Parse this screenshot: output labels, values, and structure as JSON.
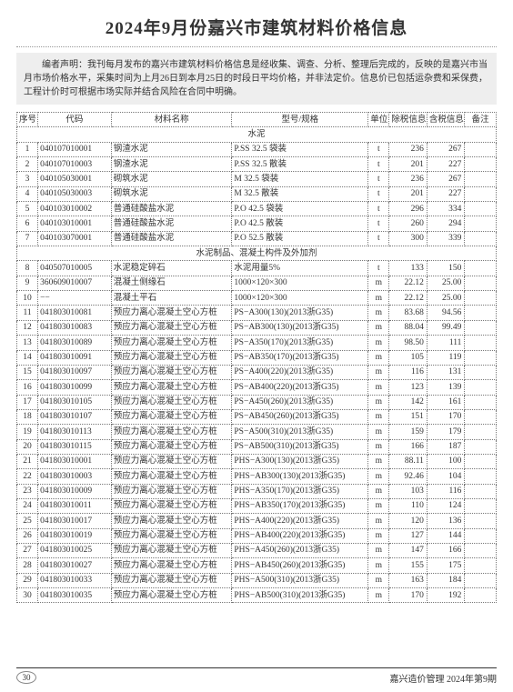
{
  "title": "2024年9月份嘉兴市建筑材料价格信息",
  "disclaimer": "编者声明：我刊每月发布的嘉兴市建筑材料价格信息是经收集、调查、分析、整理后完成的，反映的是嘉兴市当月市场价格水平，采集时间为上月26日到本月25日的时段日平均价格，并非法定价。信息价已包括运杂费和采保费，工程计价时可根据市场实际并结合风险在合同中明确。",
  "columns": [
    "序号",
    "代码",
    "材料名称",
    "型号/规格",
    "单位",
    "除税信息价",
    "含税信息价",
    "备注"
  ],
  "sections": [
    {
      "name": "水泥",
      "rows": [
        [
          "1",
          "040107010001",
          "钢渣水泥",
          "P.SS 32.5 袋装",
          "t",
          "236",
          "267",
          ""
        ],
        [
          "2",
          "040107010003",
          "钢渣水泥",
          "P.SS 32.5 散装",
          "t",
          "201",
          "227",
          ""
        ],
        [
          "3",
          "040105030001",
          "砌筑水泥",
          "M 32.5 袋装",
          "t",
          "236",
          "267",
          ""
        ],
        [
          "4",
          "040105030003",
          "砌筑水泥",
          "M 32.5 散装",
          "t",
          "201",
          "227",
          ""
        ],
        [
          "5",
          "040103010002",
          "普通硅酸盐水泥",
          "P.O 42.5 袋装",
          "t",
          "296",
          "334",
          ""
        ],
        [
          "6",
          "040103010001",
          "普通硅酸盐水泥",
          "P.O 42.5 散装",
          "t",
          "260",
          "294",
          ""
        ],
        [
          "7",
          "040103070001",
          "普通硅酸盐水泥",
          "P.O 52.5 散装",
          "t",
          "300",
          "339",
          ""
        ]
      ]
    },
    {
      "name": "水泥制品、混凝土构件及外加剂",
      "rows": [
        [
          "8",
          "040507010005",
          "水泥稳定碎石",
          "水泥用量5%",
          "t",
          "133",
          "150",
          ""
        ],
        [
          "9",
          "360609010007",
          "混凝土侧缘石",
          "1000×120×300",
          "m",
          "22.12",
          "25.00",
          ""
        ],
        [
          "10",
          "−−",
          "混凝土平石",
          "1000×120×300",
          "m",
          "22.12",
          "25.00",
          ""
        ],
        [
          "11",
          "041803010081",
          "预应力离心混凝土空心方桩",
          "PS−A300(130)(2013浙G35)",
          "m",
          "83.68",
          "94.56",
          ""
        ],
        [
          "12",
          "041803010083",
          "预应力离心混凝土空心方桩",
          "PS−AB300(130)(2013浙G35)",
          "m",
          "88.04",
          "99.49",
          ""
        ],
        [
          "13",
          "041803010089",
          "预应力离心混凝土空心方桩",
          "PS−A350(170)(2013浙G35)",
          "m",
          "98.50",
          "111",
          ""
        ],
        [
          "14",
          "041803010091",
          "预应力离心混凝土空心方桩",
          "PS−AB350(170)(2013浙G35)",
          "m",
          "105",
          "119",
          ""
        ],
        [
          "15",
          "041803010097",
          "预应力离心混凝土空心方桩",
          "PS−A400(220)(2013浙G35)",
          "m",
          "116",
          "131",
          ""
        ],
        [
          "16",
          "041803010099",
          "预应力离心混凝土空心方桩",
          "PS−AB400(220)(2013浙G35)",
          "m",
          "123",
          "139",
          ""
        ],
        [
          "17",
          "041803010105",
          "预应力离心混凝土空心方桩",
          "PS−A450(260)(2013浙G35)",
          "m",
          "142",
          "161",
          ""
        ],
        [
          "18",
          "041803010107",
          "预应力离心混凝土空心方桩",
          "PS−AB450(260)(2013浙G35)",
          "m",
          "151",
          "170",
          ""
        ],
        [
          "19",
          "041803010113",
          "预应力离心混凝土空心方桩",
          "PS−A500(310)(2013浙G35)",
          "m",
          "159",
          "179",
          ""
        ],
        [
          "20",
          "041803010115",
          "预应力离心混凝土空心方桩",
          "PS−AB500(310)(2013浙G35)",
          "m",
          "166",
          "187",
          ""
        ],
        [
          "21",
          "041803010001",
          "预应力离心混凝土空心方桩",
          "PHS−A300(130)(2013浙G35)",
          "m",
          "88.11",
          "100",
          ""
        ],
        [
          "22",
          "041803010003",
          "预应力离心混凝土空心方桩",
          "PHS−AB300(130)(2013浙G35)",
          "m",
          "92.46",
          "104",
          ""
        ],
        [
          "23",
          "041803010009",
          "预应力离心混凝土空心方桩",
          "PHS−A350(170)(2013浙G35)",
          "m",
          "103",
          "116",
          ""
        ],
        [
          "24",
          "041803010011",
          "预应力离心混凝土空心方桩",
          "PHS−AB350(170)(2013浙G35)",
          "m",
          "110",
          "124",
          ""
        ],
        [
          "25",
          "041803010017",
          "预应力离心混凝土空心方桩",
          "PHS−A400(220)(2013浙G35)",
          "m",
          "120",
          "136",
          ""
        ],
        [
          "26",
          "041803010019",
          "预应力离心混凝土空心方桩",
          "PHS−AB400(220)(2013浙G35)",
          "m",
          "127",
          "144",
          ""
        ],
        [
          "27",
          "041803010025",
          "预应力离心混凝土空心方桩",
          "PHS−A450(260)(2013浙G35)",
          "m",
          "147",
          "166",
          ""
        ],
        [
          "28",
          "041803010027",
          "预应力离心混凝土空心方桩",
          "PHS−AB450(260)(2013浙G35)",
          "m",
          "155",
          "175",
          ""
        ],
        [
          "29",
          "041803010033",
          "预应力离心混凝土空心方桩",
          "PHS−A500(310)(2013浙G35)",
          "m",
          "163",
          "184",
          ""
        ],
        [
          "30",
          "041803010035",
          "预应力离心混凝土空心方桩",
          "PHS−AB500(310)(2013浙G35)",
          "m",
          "170",
          "192",
          ""
        ]
      ]
    }
  ],
  "footer_page": "30",
  "footer_pub": "嘉兴造价管理  2024年第9期"
}
